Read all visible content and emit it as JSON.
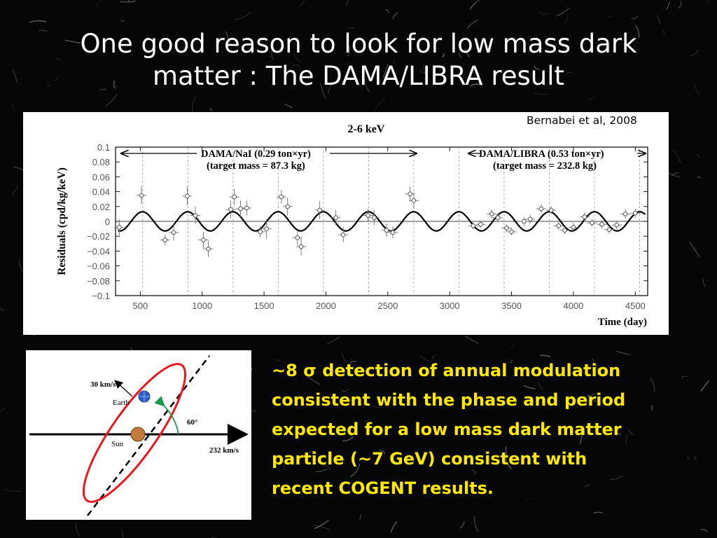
{
  "slide": {
    "title_line1": "One good reason to look for low mass dark",
    "title_line2": "matter : The DAMA/LIBRA result",
    "citation": "Bernabei et al, 2008",
    "body_lines": [
      "~8 σ detection of annual modulation",
      "consistent with the phase and period",
      "expected  for a low mass dark matter",
      "particle (~7 GeV) consistent with",
      "recent COGENT results."
    ],
    "text_color": "#ffe800",
    "background_color": "#060606"
  },
  "chart_data": {
    "type": "scatter",
    "title": "2-6 keV",
    "xlabel": "Time (day)",
    "ylabel": "Residuals (cpd/kg/keV)",
    "xlim": [
      300,
      4600
    ],
    "ylim": [
      -0.1,
      0.1
    ],
    "xticks": [
      500,
      1000,
      1500,
      2000,
      2500,
      3000,
      3500,
      4000,
      4500
    ],
    "yticks": [
      0.1,
      0.08,
      0.06,
      0.04,
      0.02,
      0,
      -0.02,
      -0.04,
      -0.06,
      -0.08,
      -0.1
    ],
    "ytick_labels": [
      "0.1",
      "0.08",
      "0.06",
      "0.04",
      "0.02",
      "0",
      "−0.02",
      "−0.04",
      "−0.06",
      "−0.08",
      "−0.1"
    ],
    "annotations": {
      "nai_label": "DAMA/NaI (0.29 ton×yr)",
      "nai_mass": "(target mass = 87.3 kg)",
      "libra_label": "DAMA/LIBRA (0.53 ton×yr)",
      "libra_mass": "(target mass = 232.8 kg)"
    },
    "model": {
      "amplitude": 0.0129,
      "period_days": 365.25,
      "peak_day": 152.5
    },
    "year_markers": [
      520,
      885,
      1250,
      1615,
      1980,
      2345,
      2710,
      3075,
      3440,
      3805,
      4170,
      4535
    ],
    "points": [
      {
        "x": 330,
        "y": -0.008,
        "err": 0.011
      },
      {
        "x": 510,
        "y": 0.035,
        "err": 0.012
      },
      {
        "x": 700,
        "y": -0.025,
        "err": 0.007
      },
      {
        "x": 770,
        "y": -0.015,
        "err": 0.011
      },
      {
        "x": 880,
        "y": 0.034,
        "err": 0.012
      },
      {
        "x": 945,
        "y": 0.008,
        "err": 0.012
      },
      {
        "x": 1010,
        "y": -0.025,
        "err": 0.011
      },
      {
        "x": 1050,
        "y": -0.037,
        "err": 0.011
      },
      {
        "x": 1230,
        "y": 0.016,
        "err": 0.012
      },
      {
        "x": 1260,
        "y": 0.033,
        "err": 0.011
      },
      {
        "x": 1310,
        "y": 0.017,
        "err": 0.011
      },
      {
        "x": 1360,
        "y": 0.018,
        "err": 0.01
      },
      {
        "x": 1470,
        "y": -0.014,
        "err": 0.008
      },
      {
        "x": 1520,
        "y": -0.01,
        "err": 0.013
      },
      {
        "x": 1640,
        "y": 0.033,
        "err": 0.009
      },
      {
        "x": 1690,
        "y": 0.02,
        "err": 0.012
      },
      {
        "x": 1770,
        "y": -0.022,
        "err": 0.01
      },
      {
        "x": 1800,
        "y": -0.034,
        "err": 0.012
      },
      {
        "x": 1950,
        "y": 0.015,
        "err": 0.012
      },
      {
        "x": 2080,
        "y": 0.005,
        "err": 0.01
      },
      {
        "x": 2140,
        "y": -0.018,
        "err": 0.01
      },
      {
        "x": 2340,
        "y": 0.008,
        "err": 0.009
      },
      {
        "x": 2390,
        "y": 0.005,
        "err": 0.01
      },
      {
        "x": 2490,
        "y": -0.012,
        "err": 0.009
      },
      {
        "x": 2540,
        "y": -0.015,
        "err": 0.008
      },
      {
        "x": 2680,
        "y": 0.037,
        "err": 0.01
      },
      {
        "x": 2710,
        "y": 0.028,
        "err": 0.011
      },
      {
        "x": 3190,
        "y": -0.006,
        "err": 0.005
      },
      {
        "x": 3250,
        "y": -0.004,
        "err": 0.005
      },
      {
        "x": 3340,
        "y": 0.01,
        "err": 0.006
      },
      {
        "x": 3390,
        "y": 0.005,
        "err": 0.006
      },
      {
        "x": 3460,
        "y": -0.009,
        "err": 0.005
      },
      {
        "x": 3500,
        "y": -0.014,
        "err": 0.005
      },
      {
        "x": 3600,
        "y": 0.0,
        "err": 0.006
      },
      {
        "x": 3650,
        "y": 0.003,
        "err": 0.006
      },
      {
        "x": 3740,
        "y": 0.017,
        "err": 0.006
      },
      {
        "x": 3820,
        "y": 0.015,
        "err": 0.005
      },
      {
        "x": 3880,
        "y": -0.006,
        "err": 0.005
      },
      {
        "x": 3930,
        "y": -0.012,
        "err": 0.005
      },
      {
        "x": 4000,
        "y": -0.008,
        "err": 0.006
      },
      {
        "x": 4090,
        "y": 0.006,
        "err": 0.006
      },
      {
        "x": 4150,
        "y": -0.002,
        "err": 0.005
      },
      {
        "x": 4230,
        "y": -0.004,
        "err": 0.006
      },
      {
        "x": 4290,
        "y": -0.011,
        "err": 0.005
      },
      {
        "x": 4350,
        "y": -0.005,
        "err": 0.006
      },
      {
        "x": 4420,
        "y": 0.01,
        "err": 0.006
      },
      {
        "x": 4500,
        "y": 0.011,
        "err": 0.006
      }
    ]
  },
  "orbit_diagram": {
    "earth_speed": "30 km/s",
    "earth_label": "Earth",
    "sun_label": "Sun",
    "angle_label": "60°",
    "sun_speed": "232 km/s",
    "orbit_color": "#e8191e",
    "earth_color": "#2c5ec8",
    "sun_color": "#c27a3a"
  }
}
